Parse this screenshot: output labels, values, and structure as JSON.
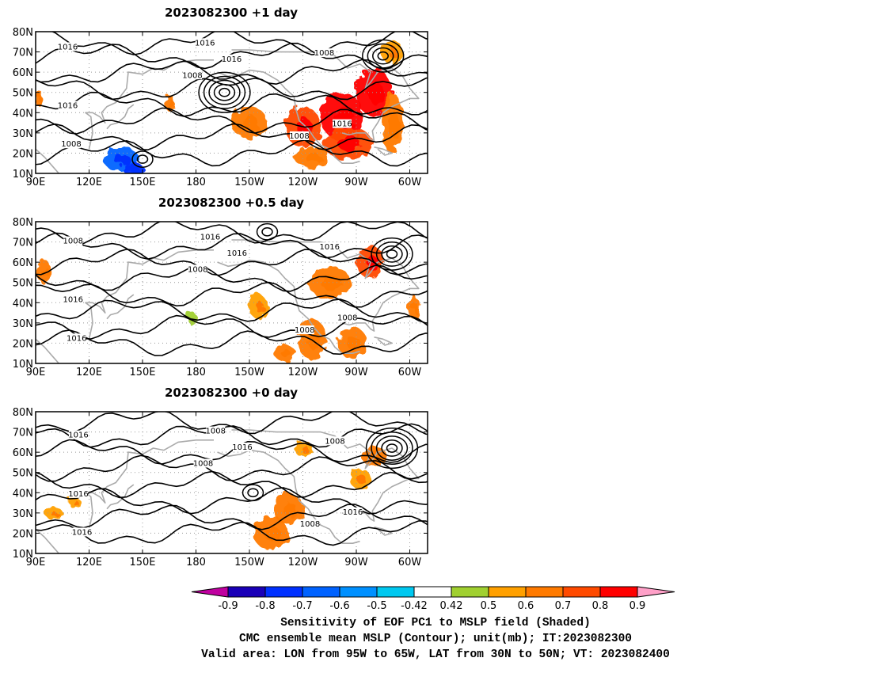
{
  "panels": [
    {
      "title": "2023082300  +1 day",
      "contour_labels": [
        "1016",
        "1016",
        "1016",
        "1008",
        "1016",
        "1008",
        "1008",
        "1008",
        "1016"
      ],
      "shading": [
        {
          "lon": 210,
          "lat": 35,
          "rlon": 10,
          "rlat": 8,
          "value": 0.7
        },
        {
          "lon": 240,
          "lat": 33,
          "rlon": 10,
          "rlat": 10,
          "value": 0.8
        },
        {
          "lon": 262,
          "lat": 38,
          "rlon": 12,
          "rlat": 12,
          "value": 0.9
        },
        {
          "lon": 265,
          "lat": 25,
          "rlon": 14,
          "rlat": 8,
          "value": 0.8
        },
        {
          "lon": 280,
          "lat": 50,
          "rlon": 10,
          "rlat": 12,
          "value": 0.9
        },
        {
          "lon": 290,
          "lat": 35,
          "rlon": 6,
          "rlat": 15,
          "value": 0.7
        },
        {
          "lon": 290,
          "lat": 70,
          "rlon": 6,
          "rlat": 6,
          "value": 0.6
        },
        {
          "lon": 245,
          "lat": 18,
          "rlon": 10,
          "rlat": 5,
          "value": 0.7
        },
        {
          "lon": 165,
          "lat": 45,
          "rlon": 3,
          "rlat": 4,
          "value": 0.7
        },
        {
          "lon": 92,
          "lat": 47,
          "rlon": 2,
          "rlat": 4,
          "value": 0.7
        },
        {
          "lon": 138,
          "lat": 17,
          "rlon": 10,
          "rlat": 6,
          "value": -0.6
        },
        {
          "lon": 145,
          "lat": 12,
          "rlon": 6,
          "rlat": 3,
          "value": -0.7
        }
      ],
      "highs_lows": [
        {
          "lon": 196,
          "lat": 50,
          "rings": 5
        },
        {
          "lon": 285,
          "lat": 68,
          "rings": 4
        },
        {
          "lon": 150,
          "lat": 17,
          "rings": 2
        }
      ]
    },
    {
      "title": "2023082300  +0.5 day",
      "contour_labels": [
        "1008",
        "1016",
        "1016",
        "1008",
        "1016",
        "1016",
        "1008",
        "1016",
        "1008"
      ],
      "shading": [
        {
          "lon": 95,
          "lat": 55,
          "rlon": 4,
          "rlat": 6,
          "value": 0.7
        },
        {
          "lon": 255,
          "lat": 50,
          "rlon": 12,
          "rlat": 8,
          "value": 0.7
        },
        {
          "lon": 278,
          "lat": 60,
          "rlon": 8,
          "rlat": 8,
          "value": 0.8
        },
        {
          "lon": 215,
          "lat": 38,
          "rlon": 5,
          "rlat": 6,
          "value": 0.6
        },
        {
          "lon": 245,
          "lat": 22,
          "rlon": 8,
          "rlat": 10,
          "value": 0.7
        },
        {
          "lon": 268,
          "lat": 20,
          "rlon": 8,
          "rlat": 8,
          "value": 0.7
        },
        {
          "lon": 302,
          "lat": 38,
          "rlon": 3,
          "rlat": 6,
          "value": 0.7
        },
        {
          "lon": 230,
          "lat": 15,
          "rlon": 6,
          "rlat": 4,
          "value": 0.7
        },
        {
          "lon": 178,
          "lat": 32,
          "rlon": 3,
          "rlat": 3,
          "value": 0.5
        }
      ],
      "highs_lows": [
        {
          "lon": 290,
          "lat": 64,
          "rings": 4
        },
        {
          "lon": 220,
          "lat": 75,
          "rings": 2
        }
      ]
    },
    {
      "title": "2023082300  +0 day",
      "contour_labels": [
        "1016",
        "1008",
        "1016",
        "1008",
        "1016",
        "1016",
        "1008",
        "1008",
        "1016"
      ],
      "shading": [
        {
          "lon": 222,
          "lat": 20,
          "rlon": 10,
          "rlat": 8,
          "value": 0.7
        },
        {
          "lon": 232,
          "lat": 32,
          "rlon": 8,
          "rlat": 8,
          "value": 0.7
        },
        {
          "lon": 280,
          "lat": 58,
          "rlon": 7,
          "rlat": 5,
          "value": 0.7
        },
        {
          "lon": 272,
          "lat": 47,
          "rlon": 6,
          "rlat": 5,
          "value": 0.6
        },
        {
          "lon": 240,
          "lat": 62,
          "rlon": 5,
          "rlat": 4,
          "value": 0.6
        },
        {
          "lon": 100,
          "lat": 30,
          "rlon": 5,
          "rlat": 3,
          "value": 0.6
        },
        {
          "lon": 112,
          "lat": 35,
          "rlon": 3,
          "rlat": 3,
          "value": 0.6
        }
      ],
      "highs_lows": [
        {
          "lon": 290,
          "lat": 62,
          "rings": 5
        },
        {
          "lon": 212,
          "lat": 40,
          "rings": 2
        }
      ]
    }
  ],
  "axes": {
    "lon_range": [
      90,
      310
    ],
    "lat_range": [
      10,
      80
    ],
    "lat_ticks": [
      "10N",
      "20N",
      "30N",
      "40N",
      "50N",
      "60N",
      "70N",
      "80N"
    ],
    "lon_ticks": [
      "90E",
      "120E",
      "150E",
      "180",
      "150W",
      "120W",
      "90W",
      "60W"
    ]
  },
  "colorbar": {
    "ticks": [
      "-0.9",
      "-0.8",
      "-0.7",
      "-0.6",
      "-0.5",
      "-0.42",
      "0.42",
      "0.5",
      "0.6",
      "0.7",
      "0.8",
      "0.9"
    ],
    "colors": [
      "#1a00b8",
      "#0030ff",
      "#0062ff",
      "#0090ff",
      "#00c8f0",
      "#ffffff",
      "#a0d030",
      "#ffa000",
      "#ff7a00",
      "#ff4a00",
      "#ff0000"
    ],
    "low_end_color": "#c000a0",
    "high_end_color": "#ffa0c8"
  },
  "caption": {
    "line1": "Sensitivity of EOF PC1 to MSLP field (Shaded)",
    "line2": "CMC ensemble mean MSLP (Contour); unit(mb); IT:2023082300",
    "line3": "Valid area: LON from 95W to 65W, LAT from 30N to 50N; VT: 2023082400"
  }
}
